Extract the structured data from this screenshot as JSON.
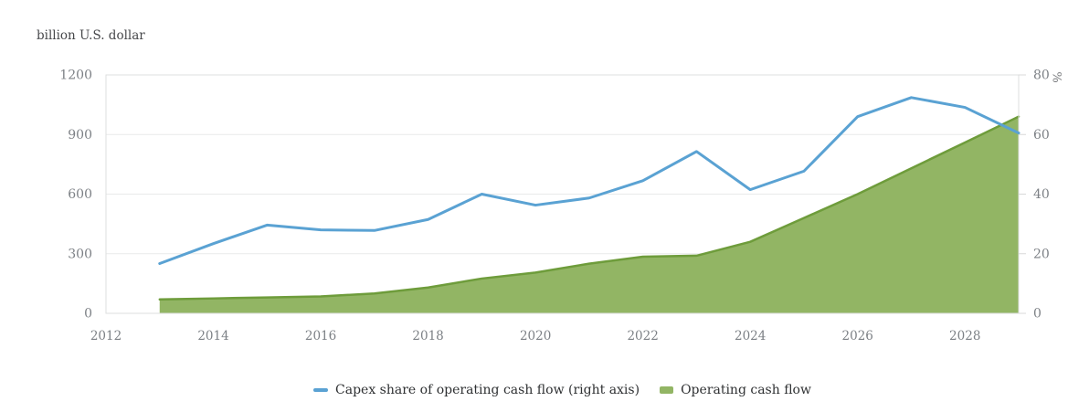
{
  "chart_data": {
    "type": "line",
    "title": "",
    "left_axis": {
      "label": "billion U.S. dollar",
      "ticks": [
        "0",
        "300",
        "600",
        "900",
        "1200"
      ],
      "range": [
        0,
        1200
      ]
    },
    "right_axis": {
      "label": "%",
      "ticks": [
        "0",
        "20",
        "40",
        "60",
        "80"
      ],
      "range": [
        0,
        80
      ]
    },
    "x_axis": {
      "tick_labels": [
        "2012",
        "2014",
        "2016",
        "2018",
        "2020",
        "2022",
        "2024",
        "2026",
        "2028"
      ],
      "range": [
        2012,
        2029
      ]
    },
    "years": [
      2013,
      2014,
      2015,
      2016,
      2017,
      2018,
      2019,
      2020,
      2021,
      2022,
      2023,
      2024,
      2025,
      2026,
      2027,
      2028,
      2029
    ],
    "series": [
      {
        "name": "Capex share of operating cash flow (right axis)",
        "type": "line",
        "axis": "right",
        "color": "#5AA2D3",
        "values": [
          16.7,
          23.4,
          29.6,
          28,
          27.8,
          31.5,
          40,
          36.3,
          38.7,
          44.5,
          54.3,
          41.5,
          47.7,
          66,
          72.4,
          69.1,
          60.5
        ]
      },
      {
        "name": "Operating cash flow",
        "type": "area",
        "axis": "left",
        "color": "#92B564",
        "stroke_color": "#6E9C3B",
        "values": [
          70,
          75,
          80,
          85,
          100,
          130,
          175,
          205,
          250,
          285,
          290,
          360,
          480,
          600,
          730,
          860,
          990
        ]
      }
    ],
    "grid": true,
    "legend_position": "bottom-center",
    "colors": {
      "grid": "#E9EAEA",
      "plot_border": "#DEDFDF",
      "tick_mark": "#D8D9D9",
      "tick_text": "#7C8085",
      "axis_title_text": "#46474A",
      "legend_text": "#2E3032",
      "background": "#FFFFFF"
    }
  }
}
